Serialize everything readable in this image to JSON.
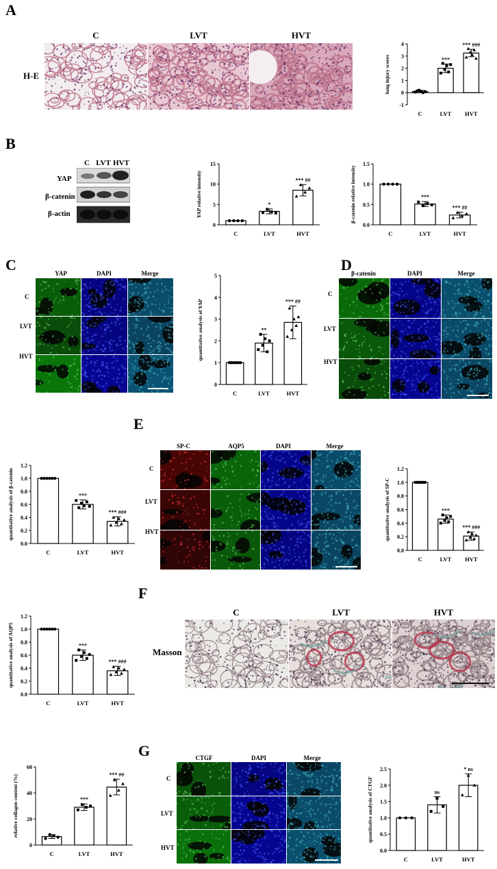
{
  "panels": {
    "A": {
      "label": "A",
      "stain_label": "H-E",
      "groups": [
        "C",
        "LVT",
        "HVT"
      ]
    },
    "B": {
      "label": "B",
      "blot_groups": [
        "C",
        "LVT",
        "HVT"
      ],
      "blot_rows": [
        "YAP",
        "β-catenin",
        "β-actin"
      ]
    },
    "C": {
      "label": "C",
      "channels": [
        "YAP",
        "DAPI",
        "Merge"
      ],
      "rows": [
        "C",
        "LVT",
        "HVT"
      ]
    },
    "D": {
      "label": "D",
      "channels": [
        "β-catenin",
        "DAPI",
        "Merge"
      ],
      "rows": [
        "C",
        "LVT",
        "HVT"
      ]
    },
    "E": {
      "label": "E",
      "channels": [
        "SP-C",
        "AQP5",
        "DAPI",
        "Merge"
      ],
      "rows": [
        "C",
        "LVT",
        "HVT"
      ]
    },
    "F": {
      "label": "F",
      "stain_label": "Masson",
      "groups": [
        "C",
        "LVT",
        "HVT"
      ]
    },
    "G": {
      "label": "G",
      "channels": [
        "CTGF",
        "DAPI",
        "Merge"
      ],
      "rows": [
        "C",
        "LVT",
        "HVT"
      ]
    }
  },
  "colors": {
    "he_background": "#f2ecee",
    "he_tissue": "#c0788f",
    "fluor_green": "#1e7a1e",
    "fluor_blue": "#0d1fa8",
    "fluor_red": "#8a1010",
    "masson_red": "#b8324a",
    "masson_teal": "#6f9f9c"
  },
  "chart_data": [
    {
      "id": "lung-injury",
      "type": "bar",
      "categories": [
        "C",
        "LVT",
        "HVT"
      ],
      "values": [
        0.1,
        2.0,
        3.25
      ],
      "errors": [
        0.1,
        0.35,
        0.3
      ],
      "points": [
        [
          0.05,
          0.15,
          0.2,
          0.1,
          0.0,
          0.1
        ],
        [
          1.6,
          2.4,
          1.9,
          2.2,
          1.7,
          2.3
        ],
        [
          2.9,
          3.6,
          3.3,
          3.1,
          3.5,
          2.8
        ]
      ],
      "annotations": [
        "",
        "***",
        "*** ###"
      ],
      "ylabel": "lung injury scores",
      "ylim": [
        -1,
        4
      ],
      "yticks": [
        -1,
        0,
        1,
        2,
        3,
        4
      ]
    },
    {
      "id": "yap-intensity",
      "type": "bar",
      "categories": [
        "C",
        "LVT",
        "HVT"
      ],
      "values": [
        1.0,
        3.3,
        8.5
      ],
      "errors": [
        0.05,
        0.6,
        1.4
      ],
      "points": [
        [
          1,
          1,
          1,
          1
        ],
        [
          3.0,
          3.8,
          3.2,
          2.9
        ],
        [
          7.0,
          9.8,
          8.0,
          9.0
        ]
      ],
      "annotations": [
        "",
        "*",
        "*** ##"
      ],
      "ylabel": "YAP relative intensity",
      "ylim": [
        0,
        15
      ],
      "yticks": [
        0,
        5,
        10,
        15
      ]
    },
    {
      "id": "bcatenin-intensity",
      "type": "bar",
      "categories": [
        "C",
        "LVT",
        "HVT"
      ],
      "values": [
        1.0,
        0.51,
        0.24
      ],
      "errors": [
        0.0,
        0.06,
        0.07
      ],
      "points": [
        [
          1,
          1,
          1,
          1
        ],
        [
          0.56,
          0.47,
          0.52,
          0.49
        ],
        [
          0.17,
          0.3,
          0.22,
          0.27
        ]
      ],
      "annotations": [
        "",
        "***",
        "*** ##"
      ],
      "ylabel": "β-catenin relative intensity",
      "ylim": [
        0,
        1.5
      ],
      "yticks": [
        0.0,
        0.5,
        1.0,
        1.5
      ]
    },
    {
      "id": "yap-quant",
      "type": "bar",
      "categories": [
        "C",
        "LVT",
        "HVT"
      ],
      "values": [
        1.0,
        1.9,
        2.85
      ],
      "errors": [
        0.0,
        0.4,
        0.75
      ],
      "points": [
        [
          1,
          1,
          1,
          1,
          1,
          1
        ],
        [
          1.6,
          2.3,
          1.8,
          2.1,
          1.5,
          2.0
        ],
        [
          2.2,
          3.5,
          2.5,
          3.0,
          2.7,
          3.1
        ]
      ],
      "annotations": [
        "",
        "**",
        "*** ##"
      ],
      "ylabel": "quantitative analysis of YAP",
      "ylim": [
        0,
        5
      ],
      "yticks": [
        0,
        1,
        2,
        3,
        4,
        5
      ]
    },
    {
      "id": "bcatenin-quant",
      "type": "bar",
      "categories": [
        "C",
        "LVT",
        "HVT"
      ],
      "values": [
        1.0,
        0.6,
        0.34
      ],
      "errors": [
        0.0,
        0.07,
        0.07
      ],
      "points": [
        [
          1,
          1,
          1,
          1,
          1,
          1
        ],
        [
          0.66,
          0.55,
          0.62,
          0.58,
          0.64,
          0.57
        ],
        [
          0.28,
          0.4,
          0.32,
          0.38,
          0.3,
          0.36
        ]
      ],
      "annotations": [
        "",
        "***",
        "*** ###"
      ],
      "ylabel": "quantitative analysis of  β-catenin",
      "ylim": [
        0,
        1.2
      ],
      "yticks": [
        0.0,
        0.2,
        0.4,
        0.6,
        0.8,
        1.0,
        1.2
      ]
    },
    {
      "id": "spc-quant",
      "type": "bar",
      "categories": [
        "C",
        "LVT",
        "HVT"
      ],
      "values": [
        1.0,
        0.46,
        0.21
      ],
      "errors": [
        0.0,
        0.06,
        0.06
      ],
      "points": [
        [
          1,
          1,
          1,
          1,
          1,
          1
        ],
        [
          0.4,
          0.52,
          0.44,
          0.48,
          0.42,
          0.5
        ],
        [
          0.15,
          0.27,
          0.19,
          0.24,
          0.17,
          0.22
        ]
      ],
      "annotations": [
        "",
        "***",
        "*** ###"
      ],
      "ylabel": "quantitative analysis of SP-C",
      "ylim": [
        0,
        1.2
      ],
      "yticks": [
        0.0,
        0.2,
        0.4,
        0.6,
        0.8,
        1.0,
        1.2
      ]
    },
    {
      "id": "aqp5-quant",
      "type": "bar",
      "categories": [
        "C",
        "LVT",
        "HVT"
      ],
      "values": [
        1.0,
        0.6,
        0.36
      ],
      "errors": [
        0.0,
        0.08,
        0.07
      ],
      "points": [
        [
          1,
          1,
          1,
          1,
          1,
          1
        ],
        [
          0.52,
          0.68,
          0.58,
          0.64,
          0.55,
          0.61
        ],
        [
          0.3,
          0.42,
          0.34,
          0.4,
          0.32,
          0.38
        ]
      ],
      "annotations": [
        "",
        "***",
        "*** ###"
      ],
      "ylabel": "quantitative analysis of  AQP5",
      "ylim": [
        0,
        1.2
      ],
      "yticks": [
        0.0,
        0.2,
        0.4,
        0.6,
        0.8,
        1.0,
        1.2
      ]
    },
    {
      "id": "collagen",
      "type": "bar",
      "categories": [
        "C",
        "LVT",
        "HVT"
      ],
      "values": [
        6.5,
        29.0,
        44.5
      ],
      "errors": [
        1.5,
        2.5,
        6.0
      ],
      "points": [
        [
          5,
          8,
          7,
          6
        ],
        [
          27,
          31,
          29,
          30
        ],
        [
          38,
          50,
          42,
          47
        ]
      ],
      "annotations": [
        "",
        "***",
        "*** ##"
      ],
      "ylabel": "relative collagen content (%)",
      "ylim": [
        0,
        60
      ],
      "yticks": [
        0,
        20,
        40,
        60
      ]
    },
    {
      "id": "ctgf-quant",
      "type": "bar",
      "categories": [
        "C",
        "LVT",
        "HVT"
      ],
      "values": [
        1.0,
        1.4,
        2.0
      ],
      "errors": [
        0.0,
        0.25,
        0.35
      ],
      "points": [
        [
          1,
          1,
          1
        ],
        [
          1.2,
          1.6,
          1.35
        ],
        [
          1.7,
          2.3,
          2.0
        ]
      ],
      "annotations": [
        "",
        "ns",
        "* ns"
      ],
      "ylabel": "quantitative analysis of CTGF",
      "ylim": [
        0,
        2.5
      ],
      "yticks": [
        0.0,
        0.5,
        1.0,
        1.5,
        2.0,
        2.5
      ]
    }
  ]
}
